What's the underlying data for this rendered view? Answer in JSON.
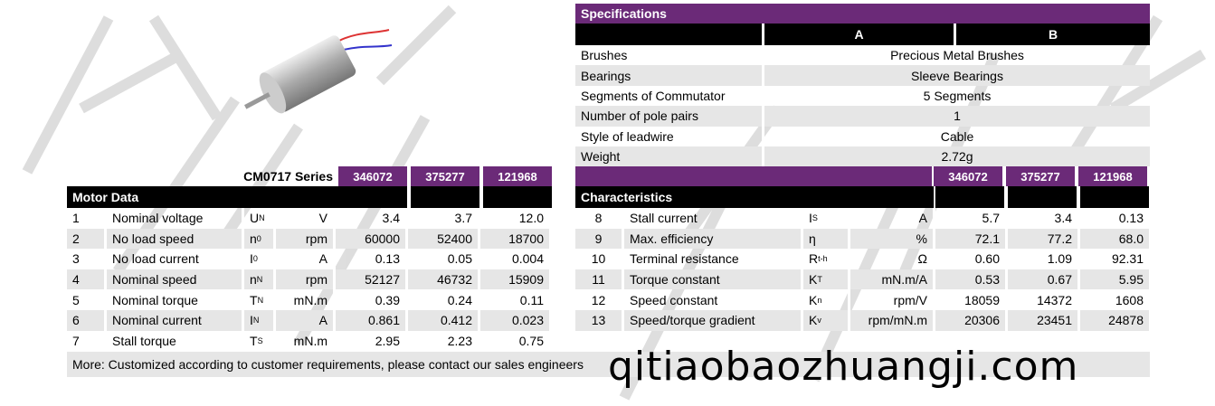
{
  "colors": {
    "purple": "#6b2a78",
    "black": "#000000",
    "stripe": "#e6e6e6"
  },
  "motor_image": {
    "icon": "motor-photo-icon"
  },
  "specifications": {
    "title": "Specifications",
    "col_a": "A",
    "col_b": "B",
    "rows": [
      {
        "label": "Brushes",
        "value": "Precious Metal Brushes"
      },
      {
        "label": "Bearings",
        "value": "Sleeve  Bearings"
      },
      {
        "label": "Segments of Commutator",
        "value": "5 Segments"
      },
      {
        "label": "Number of pole pairs",
        "value": "1"
      },
      {
        "label": "Style of leadwire",
        "value": "Cable"
      },
      {
        "label": "Weight",
        "value": "2.72g"
      }
    ]
  },
  "motor_data": {
    "series": "CM0717 Series",
    "title": "Motor Data",
    "models": [
      "346072",
      "375277",
      "121968"
    ],
    "rows": [
      {
        "n": "1",
        "name": "Nominal voltage",
        "sym": "U",
        "sub": "N",
        "unit": "V",
        "v": [
          "3.4",
          "3.7",
          "12.0"
        ]
      },
      {
        "n": "2",
        "name": "No load speed",
        "sym": "n",
        "sub": "0",
        "unit": "rpm",
        "v": [
          "60000",
          "52400",
          "18700"
        ]
      },
      {
        "n": "3",
        "name": "No load current",
        "sym": "I",
        "sub": "0",
        "unit": "A",
        "v": [
          "0.13",
          "0.05",
          "0.004"
        ]
      },
      {
        "n": "4",
        "name": "Nominal speed",
        "sym": "n",
        "sub": "N",
        "unit": "rpm",
        "v": [
          "52127",
          "46732",
          "15909"
        ]
      },
      {
        "n": "5",
        "name": "Nominal torque",
        "sym": "T",
        "sub": "N",
        "unit": "mN.m",
        "v": [
          "0.39",
          "0.24",
          "0.11"
        ]
      },
      {
        "n": "6",
        "name": "Nominal current",
        "sym": "I",
        "sub": "N",
        "unit": "A",
        "v": [
          "0.861",
          "0.412",
          "0.023"
        ]
      },
      {
        "n": "7",
        "name": "Stall torque",
        "sym": "T",
        "sub": "S",
        "unit": "mN.m",
        "v": [
          "2.95",
          "2.23",
          "0.75"
        ]
      }
    ]
  },
  "characteristics": {
    "title": "Characteristics",
    "models": [
      "346072",
      "375277",
      "121968"
    ],
    "rows": [
      {
        "n": "8",
        "name": "Stall current",
        "sym": "I",
        "sub": "S",
        "unit": "A",
        "v": [
          "5.7",
          "3.4",
          "0.13"
        ]
      },
      {
        "n": "9",
        "name": "Max. efficiency",
        "sym": "η",
        "sub": "",
        "unit": "%",
        "v": [
          "72.1",
          "77.2",
          "68.0"
        ]
      },
      {
        "n": "10",
        "name": "Terminal resistance",
        "sym": "R",
        "sub": "t-h",
        "unit": "Ω",
        "v": [
          "0.60",
          "1.09",
          "92.31"
        ]
      },
      {
        "n": "11",
        "name": "Torque constant",
        "sym": "K",
        "sub": "T",
        "unit": "mN.m/A",
        "v": [
          "0.53",
          "0.67",
          "5.95"
        ]
      },
      {
        "n": "12",
        "name": "Speed constant",
        "sym": "K",
        "sub": "n",
        "unit": "rpm/V",
        "v": [
          "18059",
          "14372",
          "1608"
        ]
      },
      {
        "n": "13",
        "name": "Speed/torque gradient",
        "sym": "K",
        "sub": "v",
        "unit": "rpm/mN.m",
        "v": [
          "20306",
          "23451",
          "24878"
        ]
      }
    ]
  },
  "note": "More: Customized according to customer requirements, please contact our sales engineers",
  "watermark": "qitiaobaozhuangji.com"
}
